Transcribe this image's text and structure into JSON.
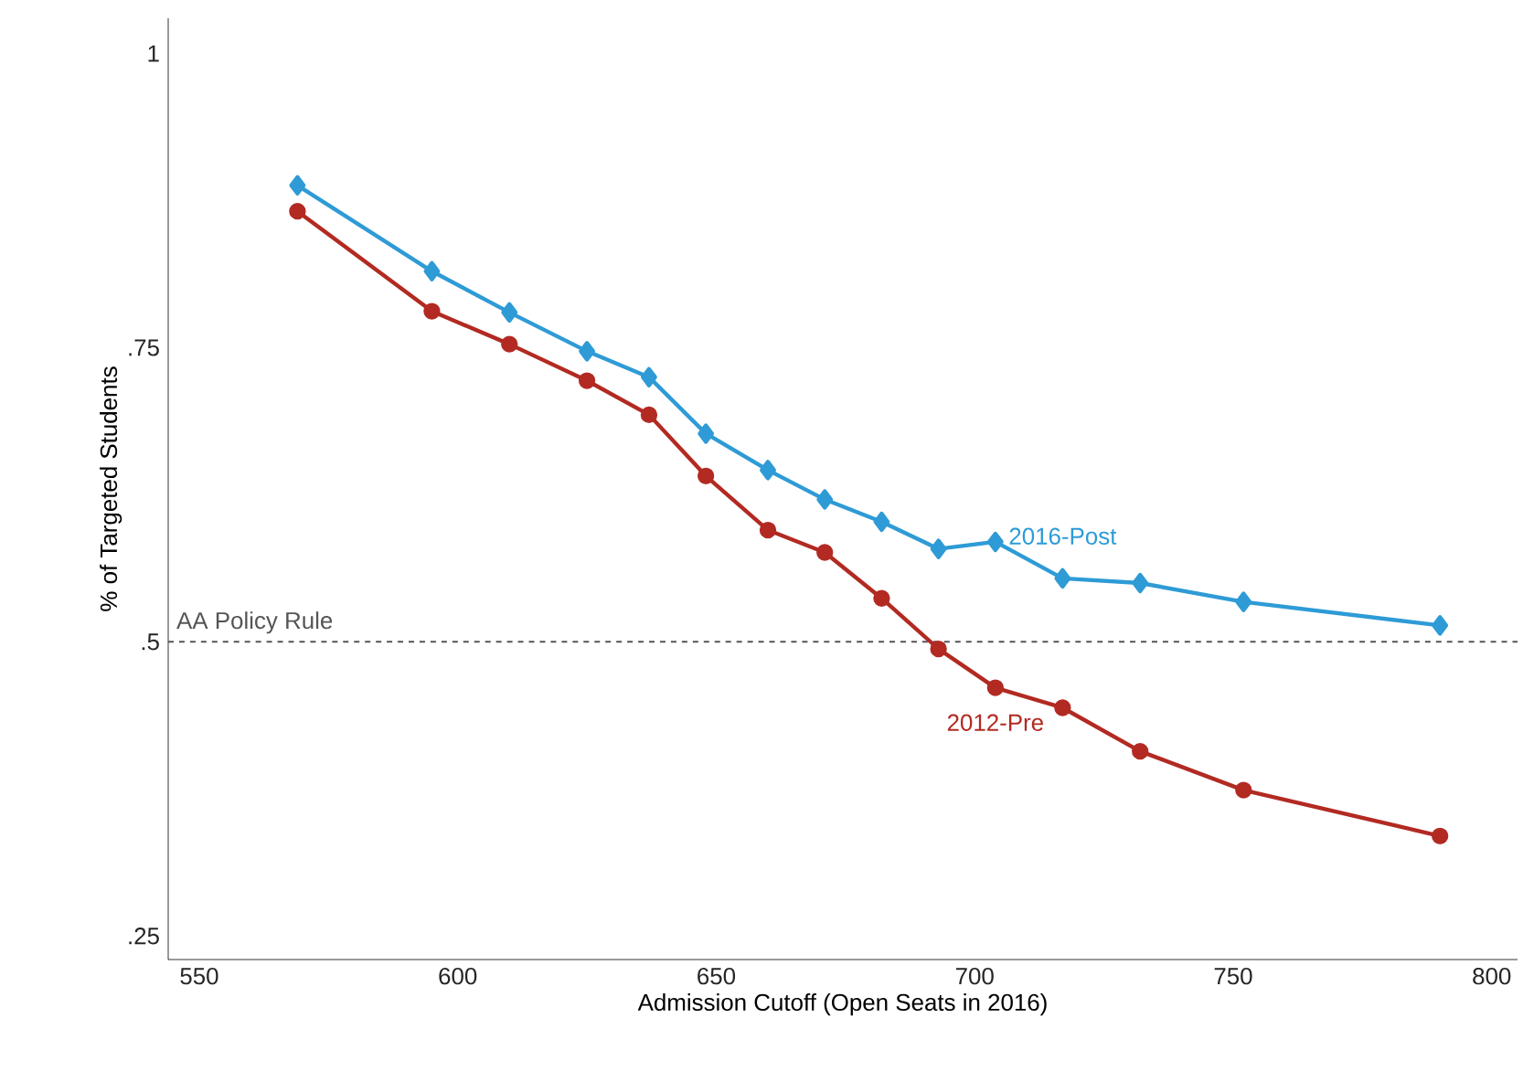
{
  "chart_data": {
    "type": "line",
    "xlabel": "Admission Cutoff (Open Seats in 2016)",
    "ylabel": "% of Targeted Students",
    "xlim": [
      544,
      805
    ],
    "ylim": [
      0.23,
      1.03
    ],
    "xticks": [
      550,
      600,
      650,
      700,
      750,
      800
    ],
    "yticks": [
      {
        "value": 0.25,
        "label": ".25"
      },
      {
        "value": 0.5,
        "label": ".5"
      },
      {
        "value": 0.75,
        "label": ".75"
      },
      1
    ],
    "grid": false,
    "legend": false,
    "line_style": "solid",
    "ref_lines": [
      {
        "axis": "y",
        "value": 0.5,
        "label": "AA Policy Rule",
        "color": "#555555",
        "line_style": "dashed"
      }
    ],
    "series": [
      {
        "name": "2016-Post",
        "color": "#2e9bd6",
        "marker": "diamond",
        "x": [
          569,
          595,
          610,
          625,
          637,
          648,
          660,
          671,
          682,
          693,
          704,
          717,
          732,
          752,
          790
        ],
        "values": [
          0.888,
          0.815,
          0.78,
          0.747,
          0.725,
          0.677,
          0.646,
          0.621,
          0.602,
          0.579,
          0.585,
          0.554,
          0.55,
          0.534,
          0.514
        ]
      },
      {
        "name": "2012-Pre",
        "color": "#b22a22",
        "marker": "circle",
        "x": [
          569,
          595,
          610,
          625,
          637,
          648,
          660,
          671,
          682,
          693,
          704,
          717,
          732,
          752,
          790
        ],
        "values": [
          0.866,
          0.781,
          0.753,
          0.722,
          0.693,
          0.641,
          0.595,
          0.576,
          0.537,
          0.494,
          0.461,
          0.444,
          0.407,
          0.374,
          0.335
        ]
      }
    ]
  }
}
